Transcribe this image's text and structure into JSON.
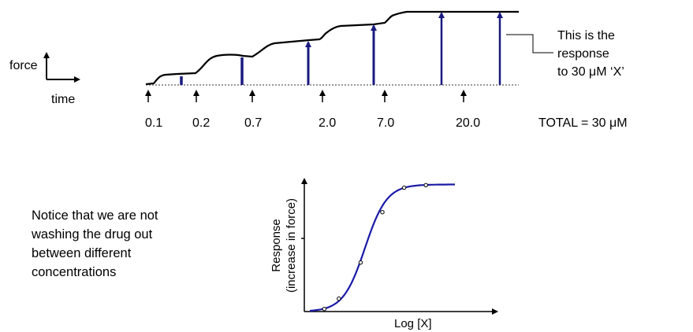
{
  "scale_bar": {
    "y_label": "force",
    "x_label": "time"
  },
  "trace": {
    "additions": [
      "0.1",
      "0.2",
      "0.7",
      "2.0",
      "7.0",
      "20.0"
    ],
    "total_label": "TOTAL = 30 μM",
    "annotation_lines": [
      "This is the",
      "response",
      "to 30 μM ‘X’"
    ]
  },
  "note": {
    "lines": [
      "Notice that we are not",
      "washing the drug out",
      "between different",
      "concentrations"
    ]
  },
  "colors": {
    "trace": "#000000",
    "bars": "#1a1a80",
    "curve": "#1a1aa8"
  },
  "chart_data": {
    "type": "scatter",
    "xlabel": "Log [X]",
    "ylabel_lines": [
      "Response",
      "(increase in force)"
    ],
    "points": [
      {
        "x": 0.1,
        "y": 0.02
      },
      {
        "x": 0.2,
        "y": 0.1
      },
      {
        "x": 0.35,
        "y": 0.38
      },
      {
        "x": 0.5,
        "y": 0.77
      },
      {
        "x": 0.65,
        "y": 0.96
      },
      {
        "x": 0.8,
        "y": 0.98
      }
    ],
    "xlim": [
      0,
      1
    ],
    "ylim": [
      0,
      1.1
    ],
    "grid": false
  }
}
